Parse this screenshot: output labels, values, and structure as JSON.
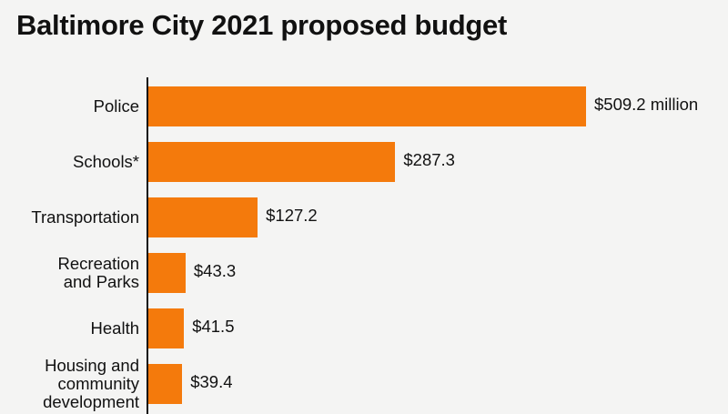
{
  "chart_data": {
    "type": "bar",
    "orientation": "horizontal",
    "title": "Baltimore City 2021 proposed budget",
    "xlabel": "",
    "ylabel": "",
    "unit": "million dollars",
    "categories": [
      "Police",
      "Schools*",
      "Transportation",
      "Recreation\nand Parks",
      "Health",
      "Housing and\ncommunity\ndevelopment"
    ],
    "values": [
      509.2,
      287.3,
      127.2,
      43.3,
      41.5,
      39.4
    ],
    "value_labels": [
      "$509.2 million",
      "$287.3",
      "$127.2",
      "$43.3",
      "$41.5",
      "$39.4"
    ],
    "xlim": [
      0,
      509.2
    ],
    "grid": false,
    "bar_color": "#f47a0c"
  }
}
